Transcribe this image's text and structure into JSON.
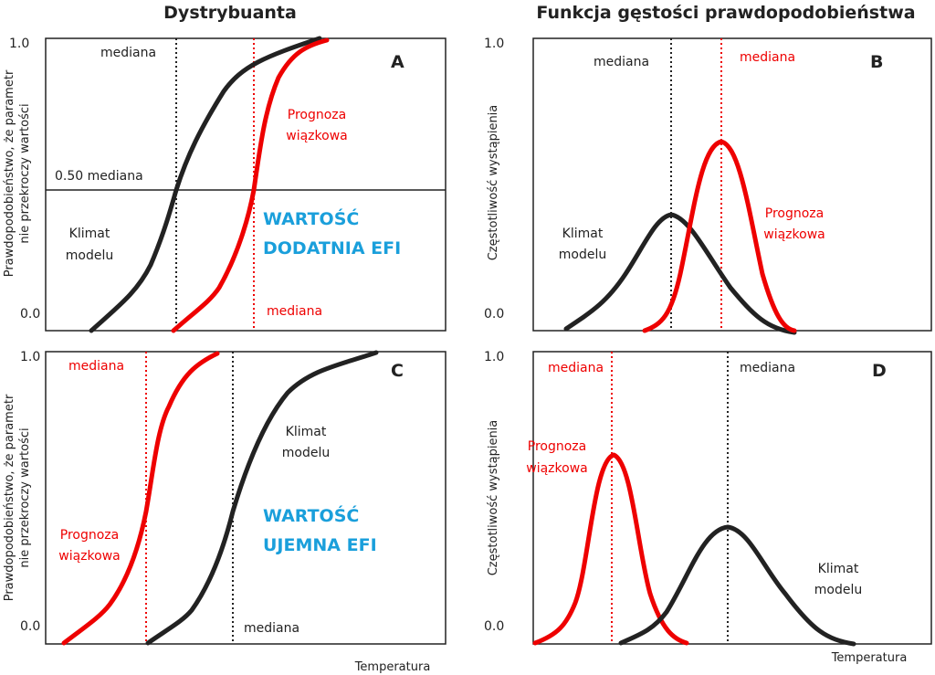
{
  "titles": {
    "left": "Dystrybuanta",
    "right": "Funkcja gęstości prawdopodobieństwa"
  },
  "panels": [
    {
      "letter": "A",
      "y_axis_label": [
        "Prawdopodobieństwo, że parametr",
        "nie przekroczy wartości"
      ],
      "y_top": "1.0",
      "y_bottom": "0.0",
      "median_model": "mediana",
      "median_ensemble": "mediana",
      "median_line": "0.50 mediana",
      "model": [
        "Klimat",
        "modelu"
      ],
      "ensemble": [
        "Prognoza",
        "wiązkowa"
      ],
      "efi": [
        "WARTOŚĆ",
        "DODATNIA EFI"
      ]
    },
    {
      "letter": "B",
      "y_axis_label": "Częstotliwość wystąpienia",
      "y_top": "1.0",
      "y_bottom": "0.0",
      "median_model": "mediana",
      "median_ensemble": "mediana",
      "model": [
        "Klimat",
        "modelu"
      ],
      "ensemble": [
        "Prognoza",
        "wiązkowa"
      ]
    },
    {
      "letter": "C",
      "y_axis_label": [
        "Prawdopodobieństwo, że parametr",
        "nie przekroczy wartości"
      ],
      "y_top": "1.0",
      "y_bottom": "0.0",
      "median_model": "mediana",
      "median_ensemble": "mediana",
      "model": [
        "Klimat",
        "modelu"
      ],
      "ensemble": [
        "Prognoza",
        "wiązkowa"
      ],
      "efi": [
        "WARTOŚĆ",
        "UJEMNA EFI"
      ],
      "x_axis_label": "Temperatura"
    },
    {
      "letter": "D",
      "y_axis_label": "Częstotliwość wystąpienia",
      "y_top": "1.0",
      "y_bottom": "0.0",
      "median_model": "mediana",
      "median_ensemble": "mediana",
      "model": [
        "Klimat",
        "modelu"
      ],
      "ensemble": [
        "Prognoza",
        "wiązkowa"
      ],
      "x_axis_label": "Temperatura"
    }
  ]
}
